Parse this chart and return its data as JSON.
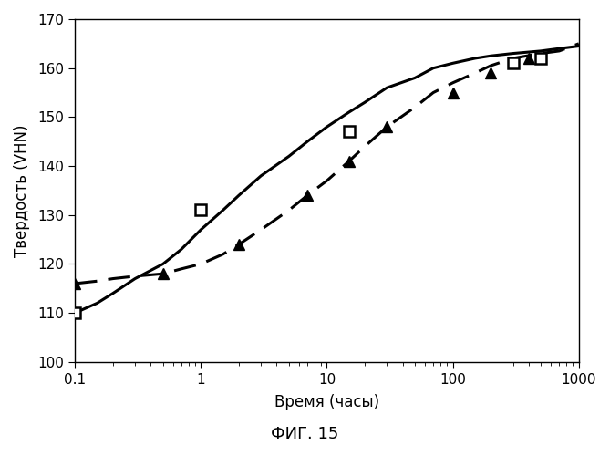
{
  "title": "ФИГ. 15",
  "xlabel": "Время (часы)",
  "ylabel": "Твердость (VHN)",
  "xlim": [
    0.1,
    1000
  ],
  "ylim": [
    100,
    170
  ],
  "yticks": [
    100,
    110,
    120,
    130,
    140,
    150,
    160,
    170
  ],
  "solid_line_x": [
    0.1,
    0.15,
    0.2,
    0.3,
    0.5,
    0.7,
    1.0,
    1.5,
    2.0,
    3.0,
    5.0,
    7.0,
    10.0,
    15.0,
    20.0,
    30.0,
    50.0,
    70.0,
    100.0,
    150.0,
    200.0,
    300.0,
    500.0,
    700.0,
    1000.0
  ],
  "solid_line_y": [
    110,
    112,
    114,
    117,
    120,
    123,
    127,
    131,
    134,
    138,
    142,
    145,
    148,
    151,
    153,
    156,
    158,
    160,
    161,
    162,
    162.5,
    163,
    163.5,
    164,
    164.5
  ],
  "dashed_line_x": [
    0.1,
    0.15,
    0.2,
    0.3,
    0.5,
    0.7,
    1.0,
    1.5,
    2.0,
    3.0,
    5.0,
    7.0,
    10.0,
    15.0,
    20.0,
    30.0,
    50.0,
    70.0,
    100.0,
    150.0,
    200.0,
    300.0,
    500.0,
    700.0,
    1000.0
  ],
  "dashed_line_y": [
    116,
    116.5,
    117,
    117.5,
    118,
    119,
    120,
    122,
    124,
    127,
    131,
    134,
    137,
    141,
    144,
    148,
    152,
    155,
    157,
    159,
    160.5,
    162,
    163,
    163.5,
    165
  ],
  "square_points_x": [
    0.1,
    1.0,
    15.0,
    300.0,
    500.0
  ],
  "square_points_y": [
    110,
    131,
    147,
    161,
    162
  ],
  "triangle_points_x": [
    0.1,
    0.5,
    2.0,
    7.0,
    15.0,
    30.0,
    100.0,
    200.0,
    400.0
  ],
  "triangle_points_y": [
    116,
    118,
    124,
    134,
    141,
    148,
    155,
    159,
    162
  ],
  "background_color": "#ffffff",
  "line_color": "#000000",
  "marker_color": "#000000",
  "title_fontsize": 13,
  "label_fontsize": 12
}
